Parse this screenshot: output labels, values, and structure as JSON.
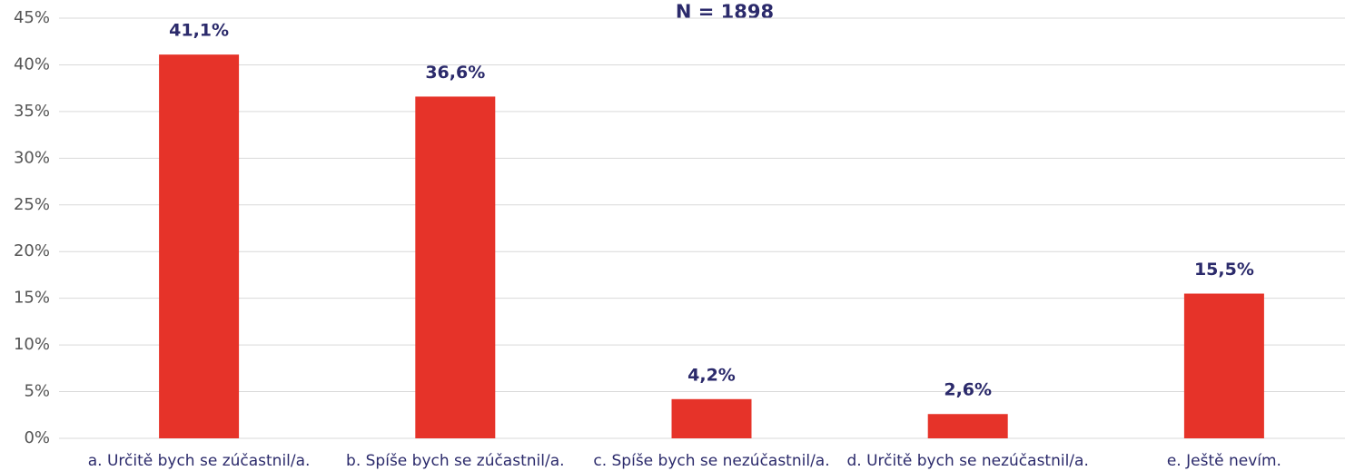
{
  "chart_data": {
    "type": "bar",
    "title": "N = 1898",
    "categories": [
      "a. Určitě bych se zúčastnil/a.",
      "b. Spíše bych se zúčastnil/a.",
      "c. Spíše bych se nezúčastnil/a.",
      "d. Určitě bych se nezúčastnil/a.",
      "e. Ještě nevím."
    ],
    "values": [
      41.1,
      36.6,
      4.2,
      2.6,
      15.5
    ],
    "value_labels": [
      "41,1%",
      "36,6%",
      "4,2%",
      "2,6%",
      "15,5%"
    ],
    "color": "#e63329",
    "ylim": [
      0,
      45
    ],
    "yticks": [
      {
        "value": 0,
        "label": "0%"
      },
      {
        "value": 5,
        "label": "5%"
      },
      {
        "value": 10,
        "label": "10%"
      },
      {
        "value": 15,
        "label": "15%"
      },
      {
        "value": 20,
        "label": "20%"
      },
      {
        "value": 25,
        "label": "25%"
      },
      {
        "value": 30,
        "label": "30%"
      },
      {
        "value": 35,
        "label": "35%"
      },
      {
        "value": 40,
        "label": "40%"
      },
      {
        "value": 45,
        "label": "45%"
      }
    ],
    "grid": true
  }
}
